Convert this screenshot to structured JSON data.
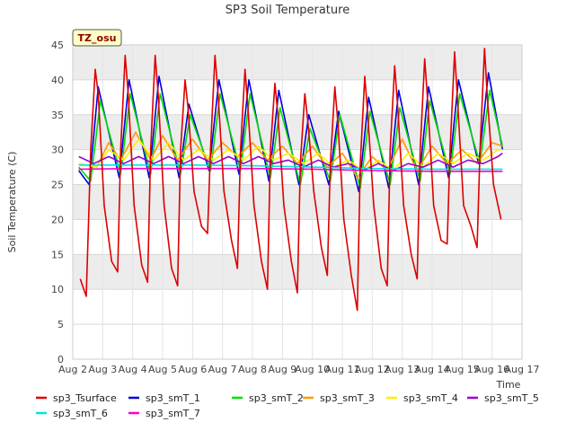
{
  "chart_data": {
    "type": "line",
    "title": "SP3 Soil Temperature",
    "xlabel": "Time",
    "ylabel": "Soil Temperature (C)",
    "badge": "TZ_osu",
    "xlim": [
      2,
      17
    ],
    "ylim": [
      0,
      45
    ],
    "x_ticks": [
      {
        "value": 2,
        "label": "Aug 2"
      },
      {
        "value": 3,
        "label": "Aug 3"
      },
      {
        "value": 4,
        "label": "Aug 4"
      },
      {
        "value": 5,
        "label": "Aug 5"
      },
      {
        "value": 6,
        "label": "Aug 6"
      },
      {
        "value": 7,
        "label": "Aug 7"
      },
      {
        "value": 8,
        "label": "Aug 8"
      },
      {
        "value": 9,
        "label": "Aug 9"
      },
      {
        "value": 10,
        "label": "Aug 10"
      },
      {
        "value": 11,
        "label": "Aug 11"
      },
      {
        "value": 12,
        "label": "Aug 12"
      },
      {
        "value": 13,
        "label": "Aug 13"
      },
      {
        "value": 14,
        "label": "Aug 14"
      },
      {
        "value": 15,
        "label": "Aug 15"
      },
      {
        "value": 16,
        "label": "Aug 16"
      },
      {
        "value": 17,
        "label": "Aug 17"
      }
    ],
    "y_ticks": [
      0,
      5,
      10,
      15,
      20,
      25,
      30,
      35,
      40,
      45
    ],
    "shaded_bands": [
      [
        10,
        15
      ],
      [
        20,
        25
      ],
      [
        30,
        35
      ],
      [
        40,
        45
      ]
    ],
    "legend_position": "bottom",
    "series": [
      {
        "name": "sp3_Tsurface",
        "color": "#dd0000",
        "x": [
          2.25,
          2.45,
          2.6,
          2.75,
          2.85,
          3.05,
          3.3,
          3.5,
          3.6,
          3.75,
          3.85,
          4.05,
          4.3,
          4.5,
          4.6,
          4.75,
          4.85,
          5.05,
          5.3,
          5.5,
          5.6,
          5.75,
          5.85,
          6.05,
          6.3,
          6.5,
          6.6,
          6.75,
          6.85,
          7.05,
          7.3,
          7.5,
          7.6,
          7.75,
          7.85,
          8.05,
          8.3,
          8.5,
          8.6,
          8.75,
          8.85,
          9.05,
          9.3,
          9.5,
          9.6,
          9.75,
          9.85,
          10.05,
          10.3,
          10.5,
          10.6,
          10.75,
          10.85,
          11.05,
          11.3,
          11.5,
          11.6,
          11.75,
          11.85,
          12.05,
          12.3,
          12.5,
          12.6,
          12.75,
          12.85,
          13.05,
          13.3,
          13.5,
          13.6,
          13.75,
          13.85,
          14.05,
          14.3,
          14.5,
          14.6,
          14.75,
          14.85,
          15.05,
          15.3,
          15.5,
          15.6,
          15.75,
          15.85,
          16.05,
          16.3
        ],
        "values": [
          11.5,
          9.0,
          30.0,
          41.5,
          38.0,
          22.0,
          14.0,
          12.5,
          30.0,
          43.5,
          38.0,
          22.0,
          13.5,
          11.0,
          30.0,
          43.5,
          38.0,
          22.0,
          13.0,
          10.5,
          30.0,
          40.0,
          36.0,
          24.0,
          19.0,
          18.0,
          30.0,
          43.5,
          38.0,
          24.0,
          17.0,
          13.0,
          30.0,
          41.5,
          36.0,
          22.0,
          14.0,
          10.0,
          30.0,
          39.5,
          35.0,
          22.0,
          14.0,
          9.5,
          28.0,
          38.0,
          34.0,
          24.0,
          16.0,
          12.0,
          28.0,
          39.0,
          34.0,
          20.0,
          12.0,
          7.0,
          28.0,
          40.5,
          35.0,
          22.0,
          13.0,
          10.5,
          30.0,
          42.0,
          36.0,
          22.0,
          15.0,
          11.5,
          30.0,
          43.0,
          37.0,
          22.0,
          17.0,
          16.5,
          30.0,
          44.0,
          37.0,
          22.0,
          19.0,
          16.0,
          30.0,
          44.5,
          37.0,
          25.0,
          20.0
        ]
      },
      {
        "name": "sp3_smT_1",
        "color": "#0000dd",
        "x": [
          2.2,
          2.55,
          2.85,
          3.55,
          3.88,
          4.55,
          4.88,
          5.55,
          5.88,
          6.55,
          6.88,
          7.55,
          7.88,
          8.55,
          8.88,
          9.55,
          9.88,
          10.55,
          10.88,
          11.55,
          11.88,
          12.55,
          12.88,
          13.55,
          13.88,
          14.55,
          14.88,
          15.55,
          15.88,
          16.35
        ],
        "values": [
          27.0,
          25.0,
          39.0,
          26.0,
          40.0,
          26.0,
          40.5,
          26.0,
          36.5,
          27.0,
          40.0,
          26.5,
          40.0,
          25.5,
          38.5,
          25.0,
          35.0,
          25.0,
          35.5,
          24.0,
          37.5,
          24.5,
          38.5,
          25.0,
          39.0,
          26.0,
          40.0,
          28.0,
          41.0,
          30.0
        ]
      },
      {
        "name": "sp3_smT_2",
        "color": "#00dd00",
        "x": [
          2.2,
          2.6,
          2.92,
          3.6,
          3.92,
          4.6,
          4.92,
          5.6,
          5.92,
          6.6,
          6.92,
          7.6,
          7.92,
          8.6,
          8.92,
          9.6,
          9.92,
          10.6,
          10.92,
          11.6,
          11.92,
          12.6,
          12.92,
          13.6,
          13.92,
          14.6,
          14.92,
          15.6,
          15.92,
          16.35
        ],
        "values": [
          27.5,
          25.5,
          37.0,
          26.5,
          38.0,
          26.5,
          38.0,
          26.5,
          35.0,
          27.0,
          38.0,
          27.0,
          38.0,
          26.0,
          36.0,
          25.0,
          33.0,
          25.5,
          35.0,
          24.5,
          35.5,
          25.0,
          36.0,
          25.5,
          37.0,
          26.5,
          38.0,
          28.0,
          38.5,
          30.5
        ]
      },
      {
        "name": "sp3_smT_3",
        "color": "#ff9900",
        "x": [
          2.2,
          2.8,
          3.2,
          3.6,
          4.1,
          4.6,
          5.0,
          5.5,
          6.0,
          6.5,
          7.0,
          7.5,
          8.0,
          8.5,
          9.0,
          9.5,
          10.0,
          10.5,
          11.0,
          11.5,
          12.0,
          12.5,
          13.0,
          13.5,
          14.0,
          14.5,
          15.0,
          15.5,
          16.0,
          16.35
        ],
        "values": [
          28.0,
          27.5,
          31.0,
          28.5,
          32.5,
          28.5,
          32.0,
          28.5,
          31.5,
          28.5,
          31.0,
          29.0,
          31.0,
          28.5,
          30.5,
          28.0,
          30.5,
          27.5,
          29.5,
          26.0,
          29.0,
          27.0,
          31.5,
          27.0,
          30.5,
          28.0,
          30.0,
          28.0,
          31.0,
          30.5
        ]
      },
      {
        "name": "sp3_smT_4",
        "color": "#ffee00",
        "x": [
          2.2,
          2.8,
          3.2,
          3.7,
          4.2,
          4.7,
          5.2,
          5.7,
          6.2,
          6.7,
          7.2,
          7.7,
          8.2,
          8.7,
          9.2,
          9.7,
          10.2,
          10.7,
          11.2,
          11.7,
          12.2,
          12.7,
          13.2,
          13.7,
          14.2,
          14.7,
          15.2,
          15.7,
          16.2,
          16.35
        ],
        "values": [
          28.0,
          27.5,
          30.0,
          28.5,
          31.5,
          28.5,
          31.0,
          28.5,
          30.0,
          28.5,
          30.0,
          28.5,
          30.5,
          28.5,
          29.5,
          28.0,
          29.5,
          27.5,
          28.5,
          27.0,
          28.5,
          27.0,
          29.5,
          27.5,
          29.5,
          28.0,
          29.5,
          28.5,
          30.0,
          30.0
        ]
      },
      {
        "name": "sp3_smT_5",
        "color": "#9900cc",
        "x": [
          2.2,
          2.7,
          3.2,
          3.7,
          4.2,
          4.7,
          5.2,
          5.7,
          6.2,
          6.7,
          7.2,
          7.7,
          8.2,
          8.7,
          9.2,
          9.7,
          10.2,
          10.7,
          11.2,
          11.7,
          12.2,
          12.7,
          13.2,
          13.7,
          14.2,
          14.7,
          15.2,
          15.7,
          16.2,
          16.35
        ],
        "values": [
          29.0,
          28.0,
          29.0,
          28.0,
          29.0,
          28.0,
          29.0,
          28.0,
          29.0,
          28.0,
          29.0,
          28.0,
          29.0,
          28.0,
          28.5,
          27.5,
          28.5,
          27.5,
          28.0,
          27.0,
          28.0,
          27.0,
          28.0,
          27.5,
          28.5,
          27.5,
          28.5,
          28.0,
          29.0,
          29.5
        ]
      },
      {
        "name": "sp3_smT_6",
        "color": "#00e5e5",
        "x": [
          2.2,
          4.0,
          6.0,
          8.0,
          10.0,
          12.0,
          14.0,
          16.35
        ],
        "values": [
          27.8,
          27.8,
          27.8,
          27.7,
          27.5,
          27.3,
          27.2,
          27.2
        ]
      },
      {
        "name": "sp3_smT_7",
        "color": "#ff00cc",
        "x": [
          2.2,
          4.0,
          6.0,
          8.0,
          10.0,
          12.0,
          14.0,
          16.35
        ],
        "values": [
          27.2,
          27.3,
          27.3,
          27.3,
          27.2,
          27.0,
          26.9,
          26.9
        ]
      }
    ]
  }
}
